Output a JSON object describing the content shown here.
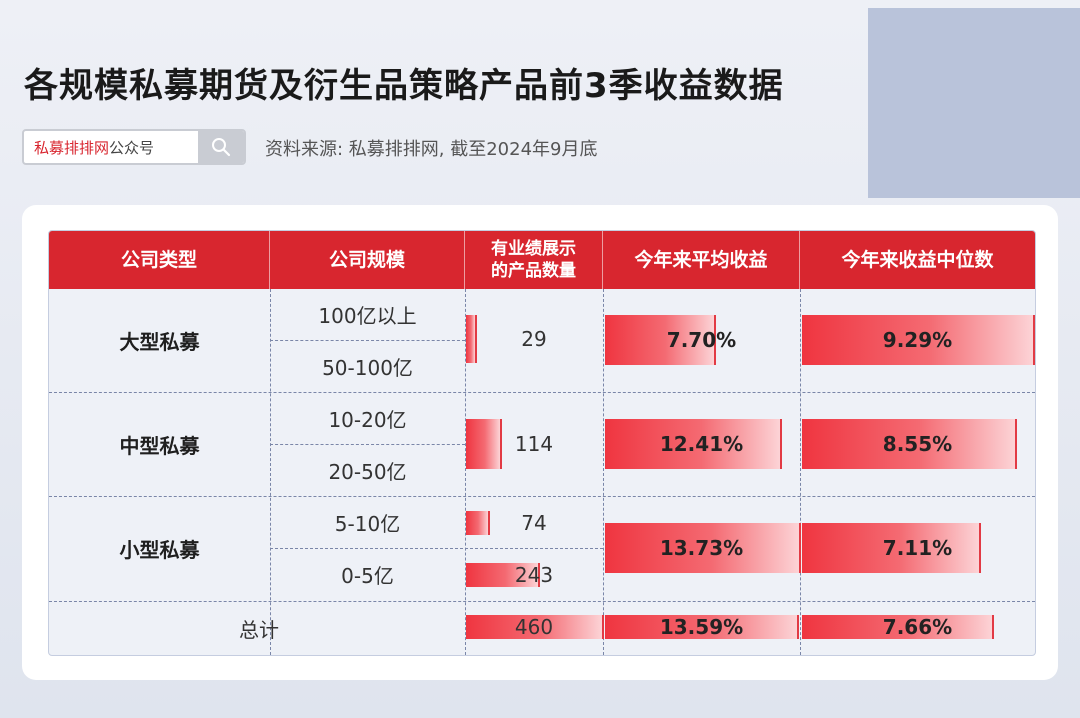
{
  "header": {
    "title": "各规模私募期货及衍生品策略产品前3季收益数据"
  },
  "search": {
    "brand": "私募排排网",
    "suffix": "公众号",
    "icon": "search-icon"
  },
  "source": "资料来源: 私募排排网, 截至2024年9月底",
  "table": {
    "columns": [
      "公司类型",
      "公司规模",
      "有业绩展示的产品数量",
      "今年来平均收益",
      "今年来收益中位数"
    ],
    "column_lines": [
      [
        "有业绩展示",
        "的产品数量"
      ]
    ],
    "groups": [
      {
        "type": "大型私募",
        "sizes": [
          "100亿以上",
          "50-100亿"
        ],
        "count": "29",
        "count_value": 29,
        "avg": "7.70%",
        "avg_value": 7.7,
        "median": "9.29%",
        "median_value": 9.29
      },
      {
        "type": "中型私募",
        "sizes": [
          "10-20亿",
          "20-50亿"
        ],
        "count": "114",
        "count_value": 114,
        "avg": "12.41%",
        "avg_value": 12.41,
        "median": "8.55%",
        "median_value": 8.55
      },
      {
        "type": "小型私募",
        "sizes": [
          "5-10亿",
          "0-5亿"
        ],
        "sub_counts": [
          "74",
          "243"
        ],
        "sub_count_values": [
          74,
          243
        ],
        "avg": "13.73%",
        "avg_value": 13.73,
        "median": "7.11%",
        "median_value": 7.11
      }
    ],
    "total": {
      "label": "总计",
      "count": "460",
      "count_value": 460,
      "avg": "13.59%",
      "avg_value": 13.59,
      "median": "7.66%",
      "median_value": 7.66
    }
  },
  "watermark": "私募排排网",
  "colors": {
    "accent": "#d8262f",
    "bar_start": "#ef3540",
    "bar_end": "#fcd3d6"
  }
}
